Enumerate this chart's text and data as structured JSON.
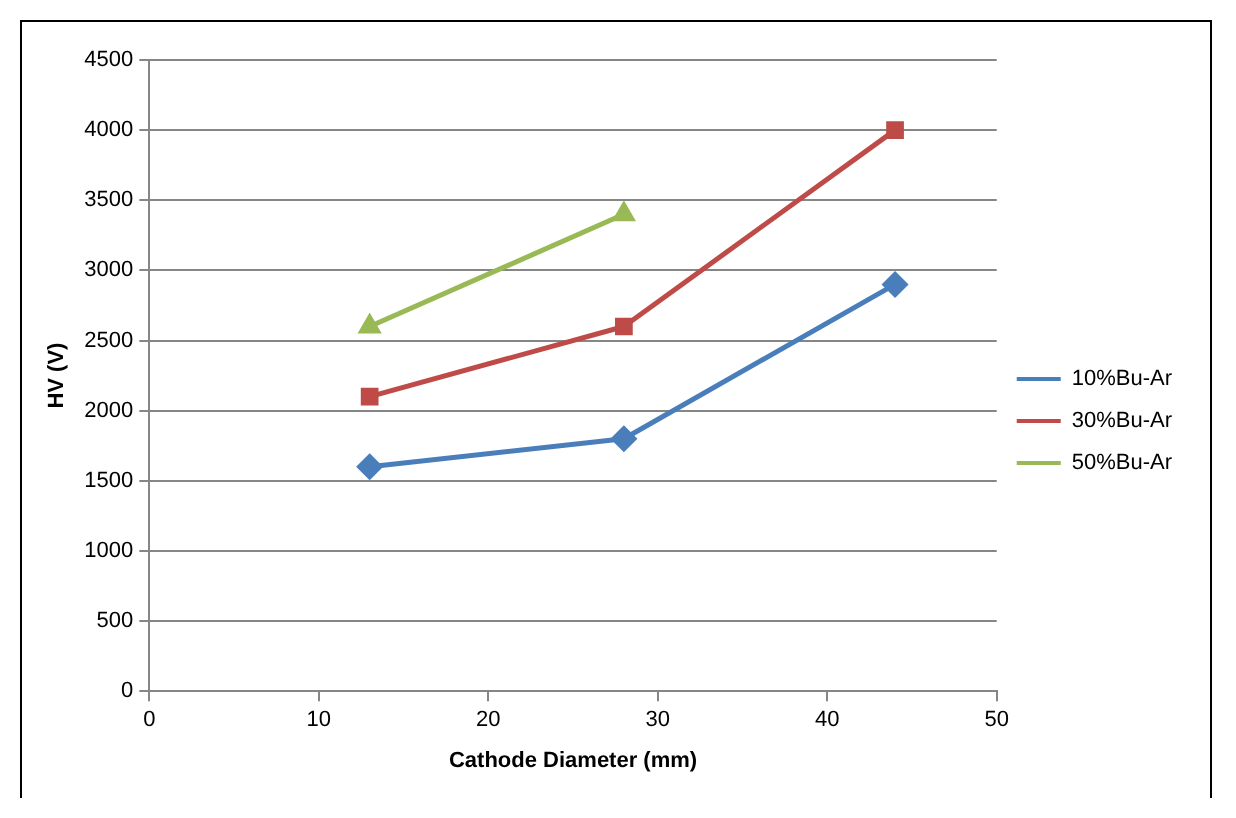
{
  "chart_data": {
    "type": "line",
    "xlabel": "Cathode Diameter (mm)",
    "ylabel": "HV (V)",
    "xlim": [
      0,
      50
    ],
    "xticks": [
      0,
      10,
      20,
      30,
      40,
      50
    ],
    "ylim": [
      0,
      4500
    ],
    "yticks": [
      0,
      500,
      1000,
      1500,
      2000,
      2500,
      3000,
      3500,
      4000,
      4500
    ],
    "grid": "y",
    "legend": "right",
    "line_style": "solid",
    "series": [
      {
        "name": "10%Bu-Ar",
        "color": "#4a7ebb",
        "marker": "diamond",
        "x": [
          13,
          28,
          44
        ],
        "values": [
          1600,
          1800,
          2900
        ]
      },
      {
        "name": "30%Bu-Ar",
        "color": "#be4b48",
        "marker": "square",
        "x": [
          13,
          28,
          44
        ],
        "values": [
          2100,
          2600,
          4000
        ]
      },
      {
        "name": "50%Bu-Ar",
        "color": "#98b954",
        "marker": "triangle",
        "x": [
          13,
          28
        ],
        "values": [
          2600,
          3400
        ]
      }
    ]
  }
}
